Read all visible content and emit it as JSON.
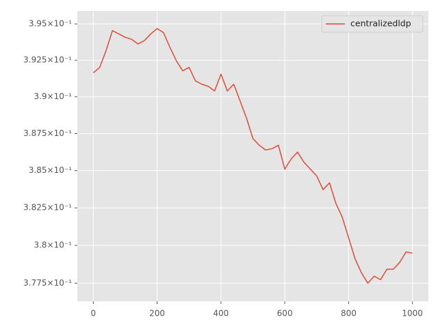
{
  "chart_data": {
    "type": "line",
    "log_y": true,
    "grid": true,
    "legend": "upper right",
    "x": [
      0,
      20,
      40,
      60,
      80,
      100,
      120,
      140,
      160,
      180,
      200,
      220,
      240,
      260,
      280,
      300,
      320,
      340,
      360,
      380,
      400,
      420,
      440,
      460,
      480,
      500,
      520,
      540,
      560,
      580,
      600,
      620,
      640,
      660,
      680,
      700,
      720,
      740,
      760,
      780,
      800,
      820,
      840,
      860,
      880,
      900,
      920,
      940,
      960,
      980,
      1000
    ],
    "series": [
      {
        "name": "centralizedldp",
        "color": "#E24A33",
        "values": [
          0.39164,
          0.39201,
          0.39316,
          0.39454,
          0.39431,
          0.39408,
          0.39394,
          0.39362,
          0.39385,
          0.39431,
          0.39468,
          0.3944,
          0.39339,
          0.39247,
          0.39178,
          0.39201,
          0.39109,
          0.39086,
          0.39072,
          0.3904,
          0.39155,
          0.3904,
          0.39086,
          0.38971,
          0.38855,
          0.38717,
          0.38671,
          0.38639,
          0.38648,
          0.38671,
          0.3851,
          0.38579,
          0.38625,
          0.38556,
          0.3851,
          0.38464,
          0.38372,
          0.38418,
          0.3828,
          0.38188,
          0.3805,
          0.37911,
          0.37819,
          0.3775,
          0.37796,
          0.37773,
          0.37842,
          0.37842,
          0.37888,
          0.37957,
          0.37948
        ]
      }
    ],
    "xlim": [
      -50,
      1050
    ],
    "xticks": [
      0,
      200,
      400,
      600,
      800,
      1000
    ],
    "ylim": [
      0.3763,
      0.3959
    ],
    "yticks": [
      {
        "value": 0.3775,
        "label": "3.775×10⁻¹"
      },
      {
        "value": 0.38,
        "label": "3.8×10⁻¹"
      },
      {
        "value": 0.3825,
        "label": "3.825×10⁻¹"
      },
      {
        "value": 0.385,
        "label": "3.85×10⁻¹"
      },
      {
        "value": 0.3875,
        "label": "3.875×10⁻¹"
      },
      {
        "value": 0.39,
        "label": "3.9×10⁻¹"
      },
      {
        "value": 0.3925,
        "label": "3.925×10⁻¹"
      },
      {
        "value": 0.395,
        "label": "3.95×10⁻¹"
      }
    ]
  }
}
